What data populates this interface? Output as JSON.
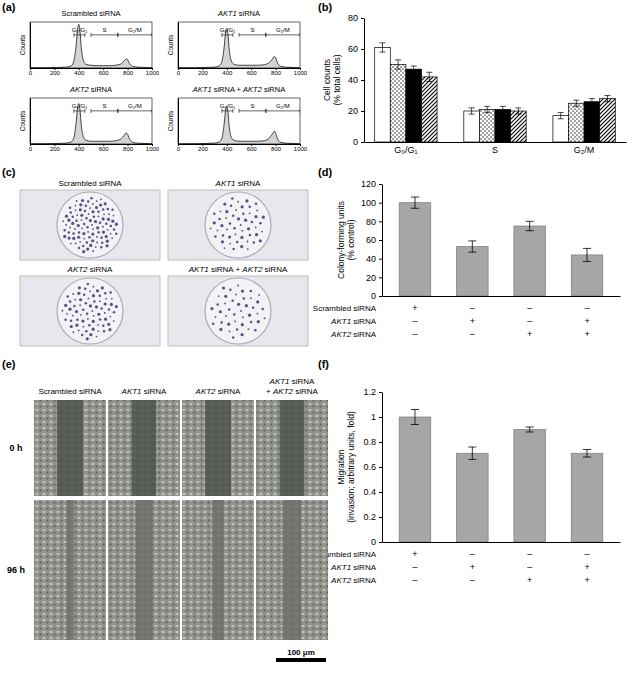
{
  "panel_labels": [
    "(a)",
    "(b)",
    "(c)",
    "(d)",
    "(e)",
    "(f)"
  ],
  "chart_data": [
    {
      "type": "line",
      "title": "Scrambled siRNA",
      "y_label": "Counts",
      "x": [
        0,
        100,
        200,
        300,
        340,
        360,
        380,
        390,
        400,
        410,
        420,
        440,
        460,
        500,
        550,
        600,
        650,
        700,
        740,
        760,
        780,
        790,
        800,
        810,
        820,
        840,
        880,
        950,
        1000
      ],
      "values": [
        0,
        0,
        1,
        2,
        5,
        15,
        55,
        85,
        95,
        80,
        45,
        15,
        8,
        6,
        5,
        5,
        5,
        6,
        8,
        12,
        18,
        20,
        18,
        13,
        8,
        4,
        2,
        1,
        0
      ],
      "xlim": [
        0,
        1000
      ],
      "xticks": [
        0,
        200,
        400,
        600,
        800,
        1000
      ],
      "ylim": [
        0,
        100
      ],
      "tick_labels": "x",
      "gates": [
        {
          "label": "G₀/G₁",
          "range": [
            360,
            450
          ]
        },
        {
          "label": "S",
          "range": [
            500,
            720
          ]
        },
        {
          "label": "G₂/M",
          "range": [
            720,
            1000
          ]
        }
      ]
    },
    {
      "type": "line",
      "title": "AKT1 siRNA",
      "y_label": "Counts",
      "x": [
        0,
        100,
        200,
        300,
        340,
        360,
        380,
        390,
        400,
        410,
        420,
        440,
        460,
        500,
        550,
        600,
        650,
        700,
        740,
        760,
        780,
        790,
        800,
        810,
        820,
        840,
        880,
        950,
        1000
      ],
      "values": [
        0,
        0,
        1,
        2,
        5,
        14,
        50,
        78,
        86,
        72,
        40,
        14,
        8,
        6,
        6,
        6,
        6,
        7,
        10,
        15,
        22,
        25,
        22,
        15,
        9,
        4,
        2,
        1,
        0
      ],
      "xlim": [
        0,
        1000
      ],
      "xticks": [
        0,
        200,
        400,
        600,
        800,
        1000
      ],
      "ylim": [
        0,
        100
      ],
      "tick_labels": "x",
      "gates": [
        {
          "label": "G₀/G₁",
          "range": [
            360,
            450
          ]
        },
        {
          "label": "S",
          "range": [
            500,
            720
          ]
        },
        {
          "label": "G₂/M",
          "range": [
            720,
            1000
          ]
        }
      ]
    },
    {
      "type": "line",
      "title": "AKT2 siRNA",
      "y_label": "Counts",
      "x": [
        0,
        100,
        200,
        300,
        340,
        360,
        380,
        390,
        400,
        410,
        420,
        440,
        460,
        500,
        550,
        600,
        650,
        700,
        740,
        760,
        780,
        790,
        800,
        810,
        820,
        840,
        880,
        950,
        1000
      ],
      "values": [
        0,
        0,
        1,
        2,
        5,
        14,
        52,
        80,
        88,
        74,
        42,
        14,
        8,
        6,
        6,
        6,
        6,
        7,
        10,
        15,
        22,
        24,
        21,
        15,
        9,
        4,
        2,
        1,
        0
      ],
      "xlim": [
        0,
        1000
      ],
      "xticks": [
        0,
        200,
        400,
        600,
        800,
        1000
      ],
      "ylim": [
        0,
        100
      ],
      "tick_labels": "x",
      "gates": [
        {
          "label": "G₀/G₁",
          "range": [
            360,
            450
          ]
        },
        {
          "label": "S",
          "range": [
            500,
            720
          ]
        },
        {
          "label": "G₂/M",
          "range": [
            720,
            1000
          ]
        }
      ]
    },
    {
      "type": "line",
      "title": "AKT1 siRNA + AKT2 siRNA",
      "y_label": "Counts",
      "x": [
        0,
        100,
        200,
        300,
        340,
        360,
        380,
        390,
        400,
        410,
        420,
        440,
        460,
        500,
        550,
        600,
        650,
        700,
        740,
        760,
        780,
        790,
        800,
        810,
        820,
        840,
        880,
        950,
        1000
      ],
      "values": [
        0,
        0,
        1,
        2,
        5,
        13,
        48,
        74,
        82,
        68,
        38,
        13,
        8,
        6,
        6,
        6,
        6,
        7,
        11,
        17,
        24,
        28,
        24,
        16,
        9,
        4,
        2,
        1,
        0
      ],
      "xlim": [
        0,
        1000
      ],
      "xticks": [
        0,
        200,
        400,
        600,
        800,
        1000
      ],
      "ylim": [
        0,
        100
      ],
      "tick_labels": "x",
      "gates": [
        {
          "label": "G₀/G₁",
          "range": [
            360,
            450
          ]
        },
        {
          "label": "S",
          "range": [
            500,
            720
          ]
        },
        {
          "label": "G₂/M",
          "range": [
            720,
            1000
          ]
        }
      ]
    },
    {
      "type": "bar",
      "y_label": [
        "Cell counts",
        "(% total cells)"
      ],
      "categories": [
        "G₀/G₁",
        "S",
        "G₂/M"
      ],
      "ylim": [
        0,
        80
      ],
      "yticks": [
        0,
        20,
        40,
        60,
        80
      ],
      "series": [
        {
          "color": "#ffffff",
          "values": [
            61,
            20,
            17
          ],
          "errors": [
            3,
            2,
            2
          ]
        },
        {
          "color": "#ffffff",
          "values": [
            50,
            21,
            25
          ],
          "errors": [
            3,
            2,
            2
          ]
        },
        {
          "color": "#000000",
          "values": [
            47,
            21,
            26
          ],
          "errors": [
            2,
            2,
            2
          ]
        },
        {
          "color": "#ffffff",
          "values": [
            42,
            20,
            28
          ],
          "errors": [
            3,
            2,
            2
          ]
        }
      ]
    },
    {
      "type": "bar",
      "y_label": [
        "Colony-forming units",
        "(% control)"
      ],
      "values": [
        100,
        53,
        75,
        44
      ],
      "errors": [
        6,
        6,
        5,
        7
      ],
      "color": "#a6a6a6",
      "ylim": [
        0,
        120
      ],
      "yticks": [
        0,
        20,
        40,
        60,
        80,
        100,
        120
      ],
      "conditions": [
        {
          "label": "Scrambled siRNA",
          "signs": [
            "+",
            "–",
            "–",
            "–"
          ]
        },
        {
          "label": "AKT1 siRNA",
          "signs": [
            "–",
            "+",
            "–",
            "+"
          ]
        },
        {
          "label": "AKT2 siRNA",
          "signs": [
            "–",
            "–",
            "+",
            "+"
          ]
        }
      ]
    },
    {
      "type": "bar",
      "y_label": [
        "Migration",
        "(invasion; arbitrary units, fold)"
      ],
      "values": [
        1.0,
        0.71,
        0.9,
        0.71
      ],
      "errors": [
        0.06,
        0.05,
        0.02,
        0.03
      ],
      "color": "#a6a6a6",
      "ylim": [
        0,
        1.2
      ],
      "yticks": [
        0,
        0.2,
        0.4,
        0.6,
        0.8,
        1,
        1.2
      ],
      "conditions": [
        {
          "label": "Scrambled siRNA",
          "signs": [
            "+",
            "–",
            "–",
            "–"
          ]
        },
        {
          "label": "AKT1 siRNA",
          "signs": [
            "–",
            "+",
            "–",
            "+"
          ]
        },
        {
          "label": "AKT2 siRNA",
          "signs": [
            "–",
            "–",
            "+",
            "+"
          ]
        }
      ]
    }
  ],
  "colony_plates": {
    "titles": [
      "Scrambled siRNA",
      "AKT1 siRNA",
      "AKT2 siRNA",
      "AKT1 siRNA + AKT2 siRNA"
    ]
  },
  "scratch_assay": {
    "titles": [
      [
        "Scrambled siRNA"
      ],
      [
        "AKT1 siRNA"
      ],
      [
        "AKT2 siRNA"
      ],
      [
        "AKT1 siRNA",
        "+ AKT2 siRNA"
      ]
    ],
    "time_labels": [
      "0 h",
      "96 h"
    ],
    "scale_bar": "100 μm"
  }
}
